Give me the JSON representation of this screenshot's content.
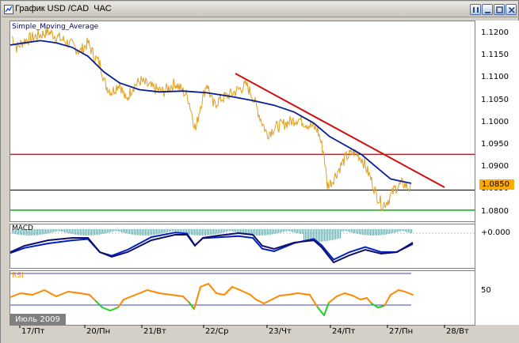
{
  "window": {
    "title": "График USD /CAD  ЧАС",
    "buttons": [
      "restore",
      "minimize",
      "maximize",
      "close"
    ]
  },
  "main_pane": {
    "indicator_label": "Simple_Moving_Average",
    "y_ticks": [
      "1.1200",
      "1.1150",
      "1.1100",
      "1.1050",
      "1.1000",
      "1.0950",
      "1.0900",
      "1.0850",
      "1.0800"
    ],
    "current_price": "1.0850",
    "lines": {
      "resistance_level": 1.093,
      "support_level": 1.0805,
      "current_level": 1.085
    },
    "colors": {
      "price": "#e0a020",
      "sma": "#0a1e96",
      "resistance": "#e01010",
      "support": "#00b400",
      "trend": "#d01010",
      "current": "#000000"
    }
  },
  "macd_pane": {
    "label": "MACD",
    "y_tick": "+0.000",
    "colors": {
      "histogram": "#00e0e0",
      "signal": "#0020c0",
      "macd": "#10106a"
    }
  },
  "rsi_pane": {
    "label": "RSI",
    "y_tick": "50",
    "colors": {
      "rsi_up": "#ff8800",
      "rsi_down": "#20d020",
      "levels": "#0000a0"
    }
  },
  "x_axis": {
    "labels": [
      "17/Пт",
      "20/Пн",
      "21/Вт",
      "22/Ср",
      "23/Чт",
      "24/Пт",
      "27/Пн",
      "28/Вт"
    ],
    "period": "Июль 2009"
  },
  "chart_data": {
    "type": "line",
    "x": [
      "17/Пт",
      "20/Пн",
      "21/Вт",
      "22/Ср",
      "23/Чт",
      "24/Пт",
      "27/Пн"
    ],
    "series": [
      {
        "name": "Simple_Moving_Average",
        "values": [
          1.1185,
          1.115,
          1.1075,
          1.1065,
          1.1045,
          1.096,
          1.0865
        ]
      }
    ],
    "price_values": [
      1.119,
      1.113,
      1.106,
      1.1045,
      1.0985,
      1.088,
      1.085
    ],
    "ylim": [
      1.078,
      1.123
    ]
  }
}
